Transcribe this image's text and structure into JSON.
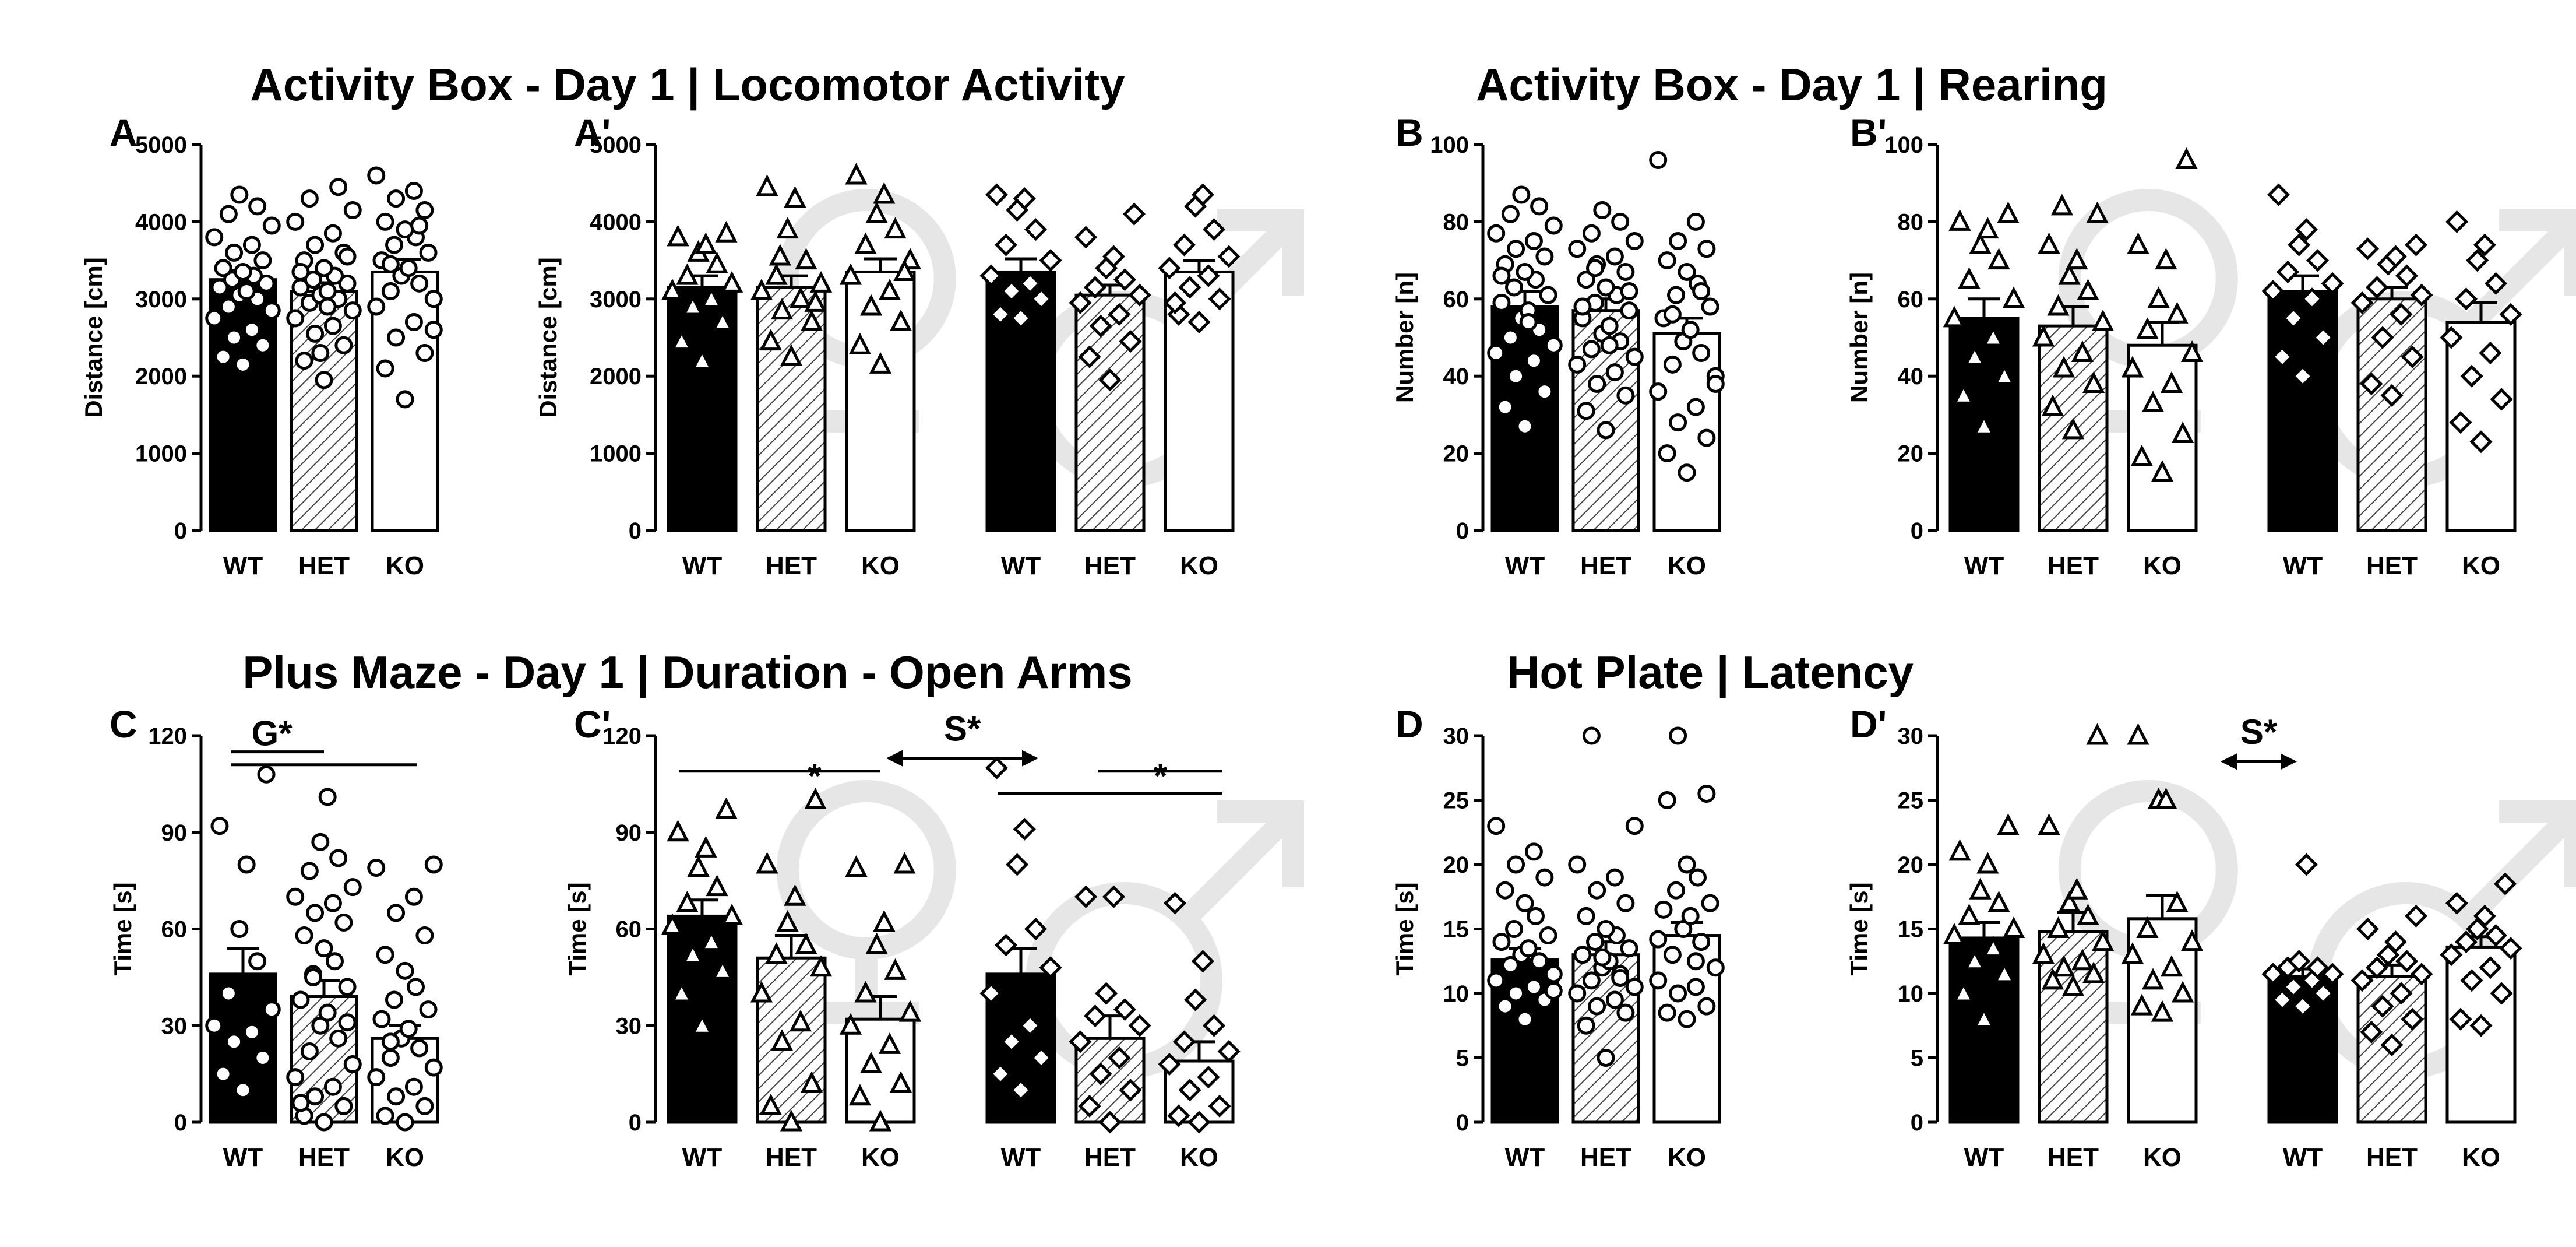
{
  "figure": {
    "titles": {
      "activity_locomotor": "Activity Box - Day 1 | Locomotor Activity",
      "activity_rearing": "Activity Box - Day 1 | Rearing",
      "plus_maze": "Plus Maze - Day 1 | Duration - Open Arms",
      "hot_plate": "Hot Plate | Latency"
    },
    "colors": {
      "WT": "#000000",
      "HET": "#ffffff",
      "KO": "#ffffff",
      "hatch": "#444444",
      "sex_symbol": "#e6e6e6"
    }
  },
  "chart_data": [
    {
      "panel": "A",
      "type": "bar",
      "ylabel": "Distance [cm]",
      "ylim": [
        0,
        5000
      ],
      "yticks": [
        "0",
        "1000",
        "2000",
        "3000",
        "4000",
        "5000"
      ],
      "categories": [
        "WT",
        "HET",
        "KO"
      ],
      "values": [
        3250,
        3100,
        3350
      ],
      "errors": [
        120,
        110,
        160
      ],
      "points": [
        [
          2150,
          2250,
          2400,
          2500,
          2600,
          2750,
          2850,
          2900,
          3000,
          3050,
          3100,
          3150,
          3200,
          3250,
          3300,
          3350,
          3400,
          3500,
          3600,
          3700,
          3800,
          3950,
          4100,
          4200,
          4350
        ],
        [
          1950,
          2200,
          2400,
          2550,
          2650,
          2750,
          2850,
          2950,
          3000,
          3050,
          3100,
          3150,
          3200,
          3250,
          3300,
          3400,
          3500,
          3600,
          3700,
          3850,
          4000,
          4150,
          4300,
          4450,
          2300,
          2900,
          3350,
          3550
        ],
        [
          1700,
          2100,
          2300,
          2500,
          2700,
          2900,
          3000,
          3100,
          3200,
          3300,
          3400,
          3500,
          3600,
          3700,
          3800,
          3900,
          4000,
          4150,
          4300,
          4400,
          4600,
          2600,
          3450,
          3950
        ]
      ]
    },
    {
      "panel": "A'",
      "type": "bar",
      "ylabel": "Distance [cm]",
      "ylim": [
        0,
        5000
      ],
      "yticks": [
        "0",
        "1000",
        "2000",
        "3000",
        "4000",
        "5000"
      ],
      "categories": [
        "WT",
        "HET",
        "KO",
        "WT",
        "HET",
        "KO"
      ],
      "sex": [
        "female",
        "female",
        "female",
        "male",
        "male",
        "male"
      ],
      "values": [
        3150,
        3150,
        3350,
        3350,
        3050,
        3350
      ],
      "errors": [
        150,
        150,
        170,
        170,
        130,
        150
      ],
      "points": [
        [
          2200,
          2450,
          2700,
          2900,
          3000,
          3100,
          3200,
          3300,
          3450,
          3600,
          3700,
          3800,
          3850
        ],
        [
          2250,
          2450,
          2700,
          2850,
          3000,
          3100,
          3200,
          3300,
          3500,
          3900,
          4300,
          4450,
          2950,
          3550
        ],
        [
          2150,
          2400,
          2700,
          2900,
          3100,
          3300,
          3500,
          3700,
          3900,
          4100,
          4350,
          4600,
          3350
        ],
        [
          2750,
          2800,
          3000,
          3100,
          3200,
          3300,
          3500,
          3700,
          3900,
          4150,
          4300,
          4350
        ],
        [
          1950,
          2250,
          2450,
          2650,
          2800,
          2950,
          3050,
          3150,
          3250,
          3400,
          3550,
          3800,
          4100
        ],
        [
          2700,
          2800,
          3000,
          3150,
          3300,
          3400,
          3550,
          3700,
          3900,
          4200,
          4350,
          2950
        ]
      ]
    },
    {
      "panel": "B",
      "type": "bar",
      "ylabel": "Number [n]",
      "ylim": [
        0,
        100
      ],
      "yticks": [
        "0",
        "20",
        "40",
        "60",
        "80",
        "100"
      ],
      "categories": [
        "WT",
        "HET",
        "KO"
      ],
      "values": [
        58,
        57,
        51
      ],
      "errors": [
        4,
        3,
        4
      ],
      "points": [
        [
          27,
          32,
          36,
          40,
          44,
          46,
          48,
          50,
          52,
          55,
          57,
          59,
          61,
          63,
          65,
          67,
          69,
          71,
          73,
          75,
          77,
          79,
          82,
          84,
          87,
          54,
          66
        ],
        [
          26,
          31,
          35,
          38,
          41,
          43,
          45,
          47,
          49,
          51,
          53,
          55,
          57,
          59,
          61,
          63,
          65,
          67,
          69,
          71,
          73,
          75,
          77,
          80,
          83,
          48,
          58,
          62,
          68
        ],
        [
          15,
          20,
          24,
          28,
          32,
          36,
          40,
          43,
          46,
          49,
          52,
          55,
          58,
          61,
          64,
          67,
          70,
          73,
          75,
          80,
          96,
          38,
          56,
          62
        ]
      ]
    },
    {
      "panel": "B'",
      "type": "bar",
      "ylabel": "Number [n]",
      "ylim": [
        0,
        100
      ],
      "yticks": [
        "0",
        "20",
        "40",
        "60",
        "80",
        "100"
      ],
      "categories": [
        "WT",
        "HET",
        "KO",
        "WT",
        "HET",
        "KO"
      ],
      "sex": [
        "female",
        "female",
        "female",
        "male",
        "male",
        "male"
      ],
      "values": [
        55,
        53,
        48,
        62,
        60,
        54
      ],
      "errors": [
        5,
        5,
        6,
        4,
        3,
        5
      ],
      "points": [
        [
          27,
          35,
          40,
          45,
          50,
          55,
          60,
          65,
          70,
          74,
          78,
          80,
          82
        ],
        [
          26,
          32,
          38,
          42,
          46,
          50,
          54,
          58,
          62,
          66,
          70,
          74,
          82,
          84
        ],
        [
          15,
          19,
          25,
          33,
          38,
          42,
          46,
          52,
          56,
          60,
          70,
          74,
          96
        ],
        [
          40,
          45,
          50,
          55,
          60,
          62,
          64,
          67,
          70,
          74,
          78,
          87
        ],
        [
          35,
          38,
          45,
          50,
          56,
          59,
          61,
          63,
          66,
          69,
          71,
          73,
          74
        ],
        [
          23,
          28,
          34,
          40,
          46,
          50,
          56,
          60,
          64,
          70,
          74,
          80
        ]
      ]
    },
    {
      "panel": "C",
      "type": "bar",
      "ylabel": "Time [s]",
      "ylim": [
        0,
        120
      ],
      "yticks": [
        "0",
        "30",
        "60",
        "90",
        "120"
      ],
      "categories": [
        "WT",
        "HET",
        "KO"
      ],
      "values": [
        46,
        39,
        26
      ],
      "errors": [
        8,
        5,
        4
      ],
      "points": [
        [
          10,
          15,
          20,
          25,
          28,
          30,
          35,
          40,
          50,
          60,
          80,
          92,
          108
        ],
        [
          0,
          2,
          5,
          8,
          11,
          14,
          18,
          22,
          26,
          30,
          34,
          38,
          42,
          46,
          50,
          54,
          58,
          62,
          65,
          68,
          70,
          73,
          78,
          82,
          87,
          101,
          6,
          31,
          45
        ],
        [
          0,
          2,
          5,
          8,
          11,
          14,
          17,
          20,
          23,
          26,
          29,
          32,
          35,
          38,
          42,
          47,
          52,
          58,
          65,
          70,
          79,
          80,
          25
        ]
      ],
      "annotations": [
        "G*"
      ]
    },
    {
      "panel": "C'",
      "type": "bar",
      "ylabel": "Time [s]",
      "ylim": [
        0,
        120
      ],
      "yticks": [
        "0",
        "30",
        "60",
        "90",
        "120"
      ],
      "categories": [
        "WT",
        "HET",
        "KO",
        "WT",
        "HET",
        "KO"
      ],
      "sex": [
        "female",
        "female",
        "female",
        "male",
        "male",
        "male"
      ],
      "values": [
        64,
        51,
        32,
        46,
        26,
        19
      ],
      "errors": [
        5,
        7,
        7,
        8,
        7,
        6
      ],
      "points": [
        [
          30,
          40,
          47,
          52,
          56,
          61,
          64,
          68,
          73,
          79,
          85,
          90,
          97
        ],
        [
          0,
          5,
          12,
          25,
          31,
          40,
          48,
          52,
          55,
          62,
          70,
          80,
          100
        ],
        [
          0,
          8,
          12,
          18,
          24,
          30,
          34,
          40,
          47,
          55,
          62,
          79,
          80
        ],
        [
          10,
          15,
          20,
          25,
          30,
          40,
          48,
          55,
          60,
          80,
          91,
          110
        ],
        [
          0,
          5,
          10,
          15,
          20,
          25,
          30,
          33,
          35,
          40,
          70,
          70
        ],
        [
          0,
          2,
          5,
          10,
          14,
          18,
          22,
          25,
          30,
          38,
          50,
          68
        ]
      ],
      "annotations": [
        "*",
        "S*",
        "*"
      ]
    },
    {
      "panel": "D",
      "type": "bar",
      "ylabel": "Time [s]",
      "ylim": [
        0,
        30
      ],
      "yticks": [
        "0",
        "5",
        "10",
        "15",
        "20",
        "25",
        "30"
      ],
      "categories": [
        "WT",
        "HET",
        "KO"
      ],
      "values": [
        12.6,
        13.0,
        14.5
      ],
      "errors": [
        0.9,
        1.0,
        1.0
      ],
      "points": [
        [
          8,
          9,
          9.5,
          10,
          10.5,
          11,
          11.5,
          12,
          12.5,
          13,
          13.5,
          14,
          14.5,
          15,
          16,
          17,
          18,
          19,
          20,
          21,
          23,
          10.2,
          12.2
        ],
        [
          5,
          7.5,
          8.5,
          9,
          9.5,
          10,
          10.5,
          11,
          11.5,
          12,
          12.5,
          13,
          13.5,
          14,
          14.5,
          15,
          16,
          17,
          18,
          19,
          20,
          23,
          30,
          11.2,
          12.8
        ],
        [
          8,
          8.5,
          9,
          10,
          10.5,
          11,
          12,
          13,
          14,
          15,
          16,
          16.5,
          17,
          18,
          19,
          20,
          25,
          25.5,
          30,
          12.5,
          14.2
        ]
      ]
    },
    {
      "panel": "D'",
      "type": "bar",
      "ylabel": "Time [s]",
      "ylim": [
        0,
        30
      ],
      "yticks": [
        "0",
        "5",
        "10",
        "15",
        "20",
        "25",
        "30"
      ],
      "categories": [
        "WT",
        "HET",
        "KO",
        "WT",
        "HET",
        "KO"
      ],
      "sex": [
        "female",
        "female",
        "female",
        "male",
        "male",
        "male"
      ],
      "values": [
        14.3,
        14.8,
        15.8,
        11.3,
        11.3,
        13.6
      ],
      "errors": [
        1.2,
        1.5,
        1.8,
        0.6,
        0.9,
        0.8
      ],
      "points": [
        [
          8,
          10,
          11.5,
          12.5,
          13.5,
          14.5,
          15,
          16,
          17,
          18,
          20,
          21,
          23
        ],
        [
          10.5,
          11,
          11.5,
          12,
          12.5,
          13,
          14,
          15,
          16,
          17,
          18,
          23,
          30
        ],
        [
          8.5,
          9,
          10,
          11,
          12,
          13,
          14,
          15,
          17,
          25,
          25,
          30
        ],
        [
          9,
          9.5,
          10,
          10.5,
          11,
          11.5,
          11.5,
          12,
          12,
          12.5,
          20
        ],
        [
          6,
          7,
          8,
          9,
          10,
          11,
          11.5,
          12,
          12.5,
          13,
          14,
          15,
          16
        ],
        [
          7.5,
          8,
          10,
          11,
          12,
          13,
          13.5,
          14,
          14.5,
          15,
          16,
          17,
          18.5
        ]
      ],
      "annotations": [
        "S*"
      ]
    }
  ]
}
